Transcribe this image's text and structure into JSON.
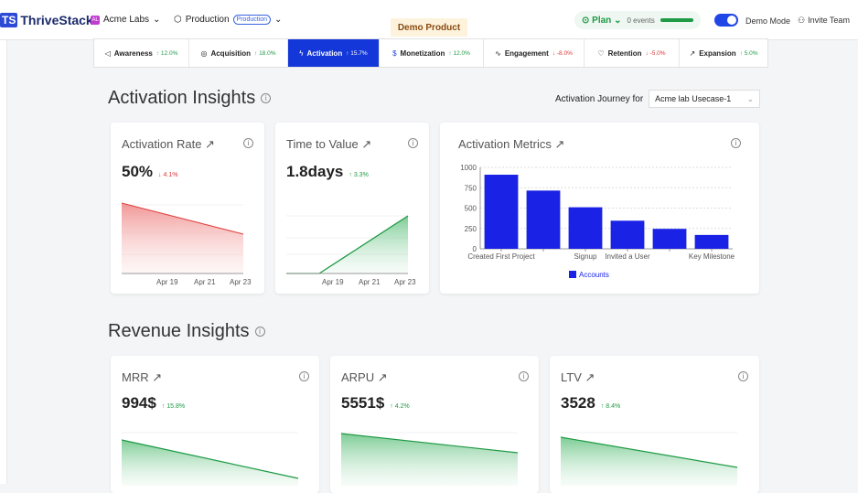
{
  "header": {
    "logo_mark": "TS",
    "logo_text": "ThriveStack",
    "org_badge": "AL",
    "org_name": "Acme Labs",
    "env_name": "Production",
    "env_pill": "Production",
    "demo_product": "Demo Product",
    "plan_label": "Plan",
    "events": "0 events",
    "demo_mode": "Demo Mode",
    "invite": "Invite Team"
  },
  "tabs": [
    {
      "name": "Awareness",
      "delta": "↑ 12.0%",
      "dir": "up",
      "icon": "megaphone-icon",
      "glyph": "◁"
    },
    {
      "name": "Acquisition",
      "delta": "↑ 18.0%",
      "dir": "up",
      "icon": "target-icon",
      "glyph": "◎"
    },
    {
      "name": "Activation",
      "delta": "↑ 15.7%",
      "dir": "up",
      "icon": "bolt-icon",
      "glyph": "ϟ"
    },
    {
      "name": "Monetization",
      "delta": "↑ 12.0%",
      "dir": "up",
      "icon": "dollar-icon",
      "glyph": "$"
    },
    {
      "name": "Engagement",
      "delta": "↓ -8.0%",
      "dir": "down",
      "icon": "pulse-icon",
      "glyph": "∿"
    },
    {
      "name": "Retention",
      "delta": "↓ -5.0%",
      "dir": "down",
      "icon": "heart-icon",
      "glyph": "♡"
    },
    {
      "name": "Expansion",
      "delta": "↑ 5.0%",
      "dir": "up",
      "icon": "trend-up-icon",
      "glyph": "↗"
    }
  ],
  "activation": {
    "title": "Activation Insights",
    "journey_label": "Activation Journey for",
    "journey_value": "Acme lab Usecase-1",
    "rate": {
      "title": "Activation Rate ↗",
      "value": "50%",
      "delta": "↓ 4.1%",
      "ticks": [
        "Apr 19",
        "Apr 21",
        "Apr 23"
      ]
    },
    "ttv": {
      "title": "Time to Value ↗",
      "value": "1.8days",
      "delta": "↑ 3.3%",
      "ticks": [
        "Apr 19",
        "Apr 21",
        "Apr 23"
      ]
    },
    "metrics": {
      "title": "Activation Metrics ↗"
    }
  },
  "chart_data": {
    "type": "bar",
    "title": "Activation Metrics",
    "categories": [
      "Created First Project",
      "",
      "Signup",
      "Invited a User",
      "",
      "Key Milestone"
    ],
    "series": [
      {
        "name": "Accounts",
        "values": [
          910,
          715,
          510,
          345,
          245,
          170
        ]
      }
    ],
    "ylim": [
      0,
      1000
    ],
    "yticks": [
      "1000",
      "750",
      "500",
      "250",
      "0"
    ],
    "color": "#1a22e6"
  },
  "revenue": {
    "title": "Revenue Insights",
    "mrr": {
      "title": "MRR ↗",
      "value": "994$",
      "delta": "↑ 15.8%"
    },
    "arpu": {
      "title": "ARPU ↗",
      "value": "5551$",
      "delta": "↑ 4.2%"
    },
    "ltv": {
      "title": "LTV ↗",
      "value": "3528",
      "delta": "↑ 8.4%"
    }
  }
}
